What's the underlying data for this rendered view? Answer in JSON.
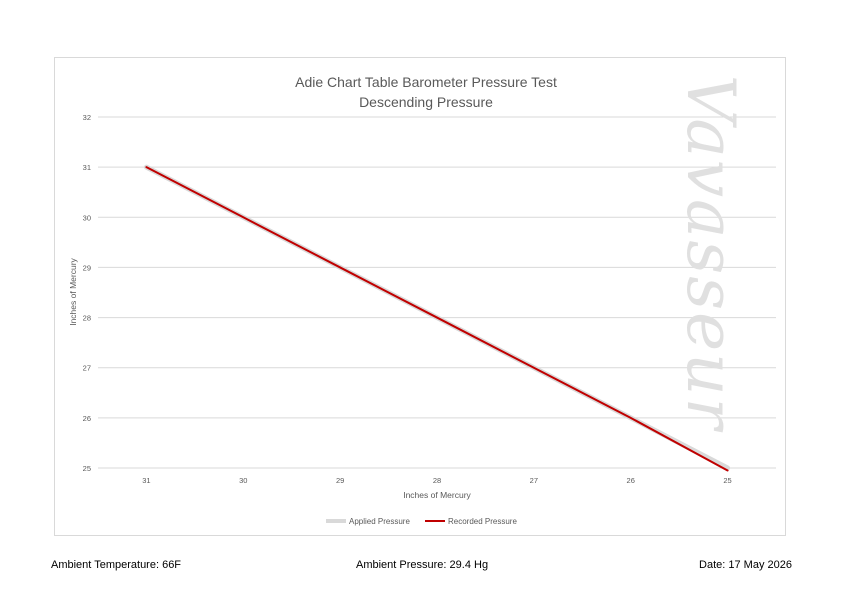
{
  "chart_data": {
    "type": "line",
    "title": "Adie Chart Table Barometer Pressure Test",
    "subtitle": "Descending Pressure",
    "xlabel": "Inches of Mercury",
    "ylabel": "Inches of Mercury",
    "categories": [
      "31",
      "30",
      "29",
      "28",
      "27",
      "26",
      "25"
    ],
    "x": [
      31,
      30,
      29,
      28,
      27,
      26,
      25
    ],
    "ylim": [
      25,
      32
    ],
    "yticks": [
      "25",
      "26",
      "27",
      "28",
      "29",
      "30",
      "31",
      "32"
    ],
    "grid": true,
    "legend_position": "bottom",
    "watermark": "Vavasseur",
    "series": [
      {
        "name": "Applied Pressure",
        "values": [
          31,
          30,
          29,
          28,
          27,
          26,
          25
        ],
        "color": "#d9d9d9"
      },
      {
        "name": "Recorded Pressure",
        "values": [
          31,
          30,
          29,
          28,
          27,
          26,
          24.95
        ],
        "color": "#c00000"
      }
    ]
  },
  "footer": {
    "ambient_temperature": "Ambient Temperature: 66F",
    "ambient_pressure": "Ambient Pressure: 29.4 Hg",
    "date": "Date: 17 May 2026"
  }
}
